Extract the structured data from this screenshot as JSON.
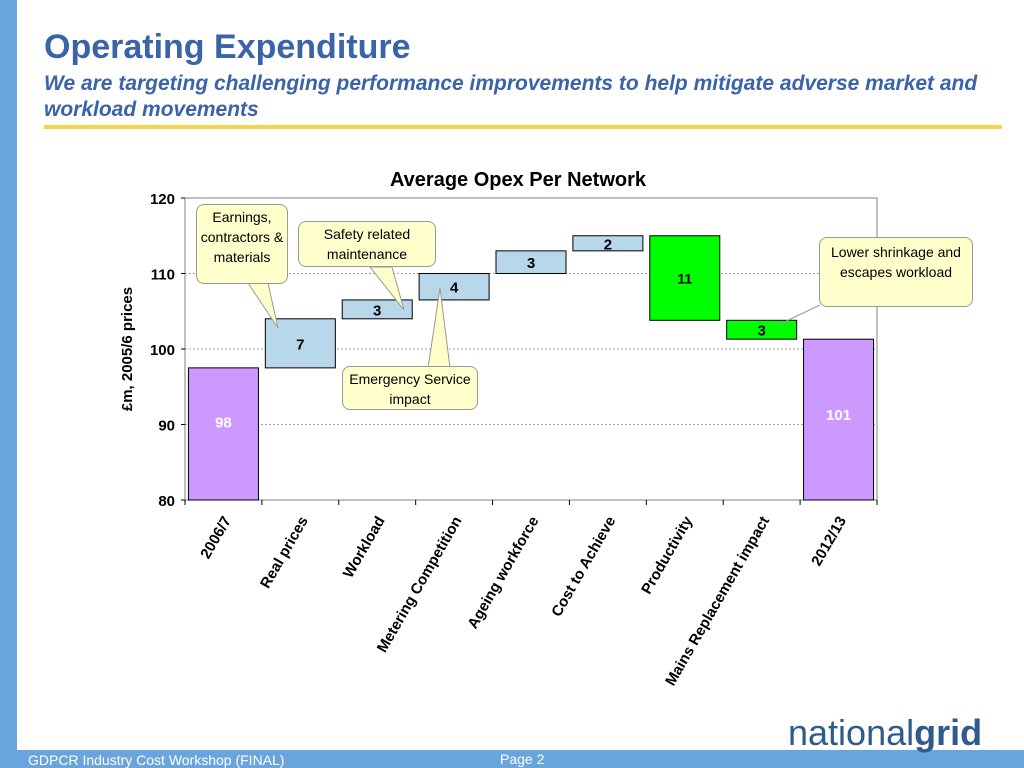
{
  "header": {
    "title": "Operating Expenditure",
    "subtitle": "We are targeting challenging performance improvements to help mitigate adverse market and workload movements"
  },
  "chart_data": {
    "type": "waterfall",
    "title": "Average Opex Per Network",
    "ylabel": "£m, 2005/6 prices",
    "xlabel": "",
    "ylim": [
      80,
      120
    ],
    "yticks": [
      80,
      90,
      100,
      110,
      120
    ],
    "grid": "horizontal dashed",
    "legend": "none",
    "steps": [
      {
        "category": "2006/7",
        "kind": "total",
        "base": 80,
        "top": 97.5,
        "label": "98",
        "color": "#cc99ff"
      },
      {
        "category": "Real prices",
        "kind": "increase",
        "base": 97.5,
        "top": 104,
        "label": "7",
        "color": "#b9d7ea"
      },
      {
        "category": "Workload",
        "kind": "increase",
        "base": 104,
        "top": 106.5,
        "label": "3",
        "color": "#b9d7ea"
      },
      {
        "category": "Metering Competition",
        "kind": "increase",
        "base": 106.5,
        "top": 110,
        "label": "4",
        "color": "#b9d7ea"
      },
      {
        "category": "Ageing workforce",
        "kind": "increase",
        "base": 110,
        "top": 113,
        "label": "3",
        "color": "#b9d7ea"
      },
      {
        "category": "Cost to Achieve",
        "kind": "increase",
        "base": 113,
        "top": 115,
        "label": "2",
        "color": "#b9d7ea"
      },
      {
        "category": "Productivity",
        "kind": "decrease",
        "base": 103.8,
        "top": 115,
        "label": "11",
        "color": "#00ff00"
      },
      {
        "category": "Mains Replacement impact",
        "kind": "decrease",
        "base": 101.3,
        "top": 103.8,
        "label": "3",
        "color": "#00ff00"
      },
      {
        "category": "2012/13",
        "kind": "total",
        "base": 80,
        "top": 101.3,
        "label": "101",
        "color": "#cc99ff"
      }
    ],
    "annotations": [
      {
        "text": "Earnings, contractors & materials",
        "target": "Real prices"
      },
      {
        "text": "Safety related maintenance",
        "target": "Workload"
      },
      {
        "text": "Emergency Service impact",
        "target": "Metering Competition"
      },
      {
        "text": "Lower shrinkage and escapes workload",
        "target": "Mains Replacement impact"
      }
    ]
  },
  "callouts": {
    "earnings": "Earnings, contractors & materials",
    "safety": "Safety related maintenance",
    "emergency": "Emergency Service impact",
    "shrinkage": "Lower shrinkage and escapes workload"
  },
  "footer": {
    "left": "GDPCR Industry Cost Workshop (FINAL)",
    "page": "Page 2"
  },
  "logo": {
    "part1": "national",
    "part2": "grid"
  },
  "colors": {
    "accent": "#3a63a8",
    "rule": "#f5d44d",
    "strip": "#6aa4dd",
    "total_bar": "#cc99ff",
    "increase_bar": "#b9d7ea",
    "decrease_bar": "#00ff00"
  }
}
